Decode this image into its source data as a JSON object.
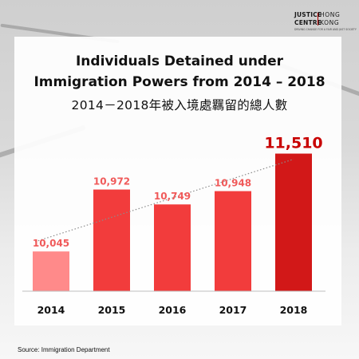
{
  "logo": {
    "line1_left": "JUSTICE",
    "line1_right": "HONG",
    "line2_left": "CENTRE",
    "line2_right": "KONG",
    "tagline": "DRIVING CHANGE FOR A FAIR AND JUST SOCIETY"
  },
  "source": "Source: Immigration Department",
  "colors": {
    "bar_light": "#ff8a8a",
    "bar_mid": "#f23c3c",
    "bar_dark": "#d21818",
    "label": "#f05a5a",
    "label_highlight": "#c80000",
    "trendline": "#8c8c8c"
  },
  "chart_data": {
    "type": "bar",
    "title_line1": "Individuals Detained under",
    "title_line2": "Immigration Powers from 2014 – 2018",
    "subtitle": "2014－2018年被入境處羈留的總人數",
    "categories": [
      "2014",
      "2015",
      "2016",
      "2017",
      "2018"
    ],
    "values": [
      10045,
      10972,
      10749,
      10948,
      11510
    ],
    "data_labels": [
      "10,045",
      "10,972",
      "10,749",
      "10,948",
      "11,510"
    ],
    "highlight_index": 4,
    "trendline": true,
    "ylim": [
      9450,
      11600
    ],
    "grid": false,
    "xlabel": "",
    "ylabel": ""
  }
}
